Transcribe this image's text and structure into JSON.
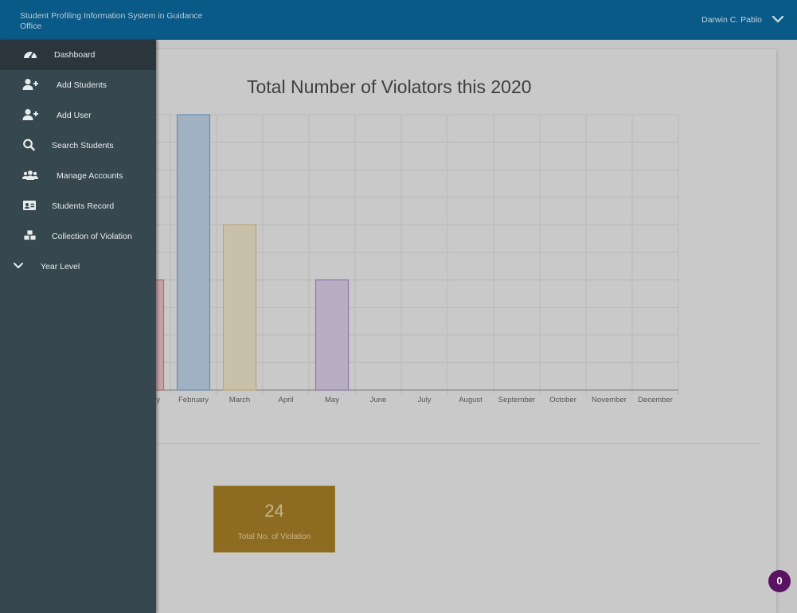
{
  "header": {
    "app_title": "Student Profiling Information System in Guidance Office",
    "user_name": "Darwin C. Pablo"
  },
  "sidebar": {
    "items": [
      {
        "label": "Dashboard",
        "icon": "dashboard-icon"
      },
      {
        "label": "Add Students",
        "icon": "add-user-icon"
      },
      {
        "label": "Add User",
        "icon": "add-user-icon"
      },
      {
        "label": "Search Students",
        "icon": "search-icon"
      },
      {
        "label": "Manage Accounts",
        "icon": "users-icon"
      },
      {
        "label": "Students Record",
        "icon": "id-card-icon"
      },
      {
        "label": "Collection of Violation",
        "icon": "cubes-icon"
      },
      {
        "label": "Year Level",
        "icon": "chevron-down-icon"
      }
    ]
  },
  "stat": {
    "value": "24",
    "label": "Total No. of Violation"
  },
  "notification_count": "0",
  "chart_data": {
    "type": "bar",
    "title": "Total Number of Violators this 2020",
    "categories": [
      "January",
      "February",
      "March",
      "April",
      "May",
      "June",
      "July",
      "August",
      "September",
      "October",
      "November",
      "December"
    ],
    "tick_labels": [
      "y",
      "February",
      "March",
      "April",
      "May",
      "June",
      "July",
      "August",
      "September",
      "October",
      "November",
      "December"
    ],
    "values": [
      4,
      10,
      6,
      0,
      4,
      0,
      0,
      0,
      0,
      0,
      0,
      0
    ],
    "ylim": [
      0,
      10
    ],
    "grid": true,
    "colors": [
      "#b46a73",
      "#6c8fb0",
      "#b9a778",
      "#9d9d9d",
      "#8a78a8",
      "#9d9d9d",
      "#9d9d9d",
      "#9d9d9d",
      "#9d9d9d",
      "#9d9d9d",
      "#9d9d9d",
      "#9d9d9d"
    ],
    "fill_colors": [
      "#c4a2a7",
      "#9fb1c2",
      "#c8c0a9",
      "#c9c9c9",
      "#b7aec4",
      "#c9c9c9",
      "#c9c9c9",
      "#c9c9c9",
      "#c9c9c9",
      "#c9c9c9",
      "#c9c9c9",
      "#c9c9c9"
    ]
  }
}
